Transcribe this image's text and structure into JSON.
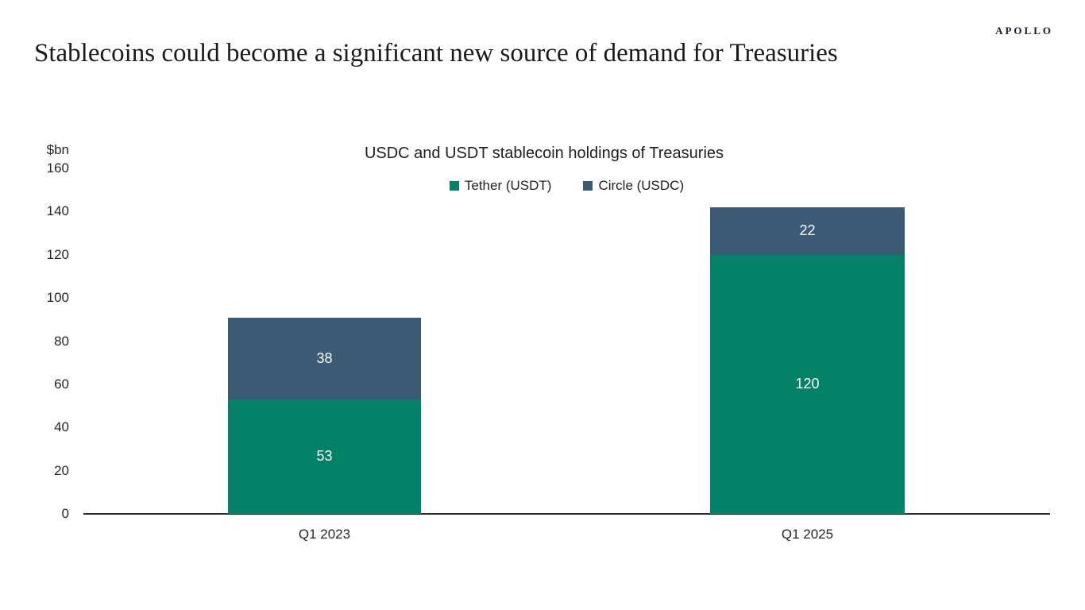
{
  "brand": {
    "logo_text": "APOLLO"
  },
  "page_title": "Stablecoins could become a significant new source of demand for Treasuries",
  "chart_data": {
    "type": "bar",
    "stacked": true,
    "title": "USDC and USDT stablecoin holdings of Treasuries",
    "unit_label": "$bn",
    "categories": [
      "Q1 2023",
      "Q1 2025"
    ],
    "series": [
      {
        "name": "Tether (USDT)",
        "color": "#038268",
        "values": [
          53,
          120
        ]
      },
      {
        "name": "Circle (USDC)",
        "color": "#3C5A76",
        "values": [
          38,
          22
        ]
      }
    ],
    "totals": [
      91,
      142
    ],
    "ylim": [
      0,
      160
    ],
    "yticks": [
      0,
      20,
      40,
      60,
      80,
      100,
      120,
      140,
      160
    ],
    "grid": false,
    "legend_position": "top",
    "value_label_color": "#FFFFFF",
    "axis_color": "#2E2E2E"
  }
}
